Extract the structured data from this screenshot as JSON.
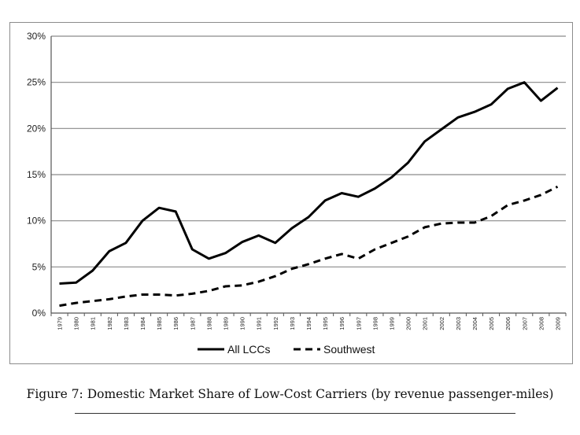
{
  "chart_data": {
    "type": "line",
    "title": "",
    "xlabel": "",
    "ylabel": "",
    "ylim": [
      0,
      30
    ],
    "yticks": [
      "0%",
      "5%",
      "10%",
      "15%",
      "20%",
      "25%",
      "30%"
    ],
    "grid": true,
    "legend_position": "bottom",
    "x": [
      "1979",
      "1980",
      "1981",
      "1982",
      "1983",
      "1984",
      "1985",
      "1986",
      "1987",
      "1988",
      "1989",
      "1990",
      "1991",
      "1992",
      "1993",
      "1994",
      "1995",
      "1996",
      "1997",
      "1998",
      "1999",
      "2000",
      "2001",
      "2002",
      "2003",
      "2004",
      "2005",
      "2006",
      "2007",
      "2008",
      "2009"
    ],
    "series": [
      {
        "name": "All LCCs",
        "style": "solid",
        "color": "#000000",
        "values": [
          3.2,
          3.3,
          4.6,
          6.7,
          7.6,
          10.0,
          11.4,
          11.0,
          6.9,
          5.9,
          6.5,
          7.7,
          8.4,
          7.6,
          9.2,
          10.4,
          12.2,
          13.0,
          12.6,
          13.5,
          14.7,
          16.3,
          18.6,
          19.9,
          21.2,
          21.8,
          22.6,
          24.3,
          25.0,
          23.0,
          24.4
        ]
      },
      {
        "name": "Southwest",
        "style": "dashed",
        "color": "#000000",
        "values": [
          0.8,
          1.1,
          1.3,
          1.5,
          1.8,
          2.0,
          2.0,
          1.9,
          2.1,
          2.4,
          2.9,
          3.0,
          3.4,
          4.0,
          4.8,
          5.3,
          5.9,
          6.4,
          5.9,
          6.9,
          7.6,
          8.3,
          9.3,
          9.7,
          9.8,
          9.8,
          10.5,
          11.7,
          12.2,
          12.8,
          13.7
        ]
      }
    ]
  },
  "caption": "Figure 7: Domestic Market Share of Low-Cost Carriers (by revenue passenger-miles)"
}
